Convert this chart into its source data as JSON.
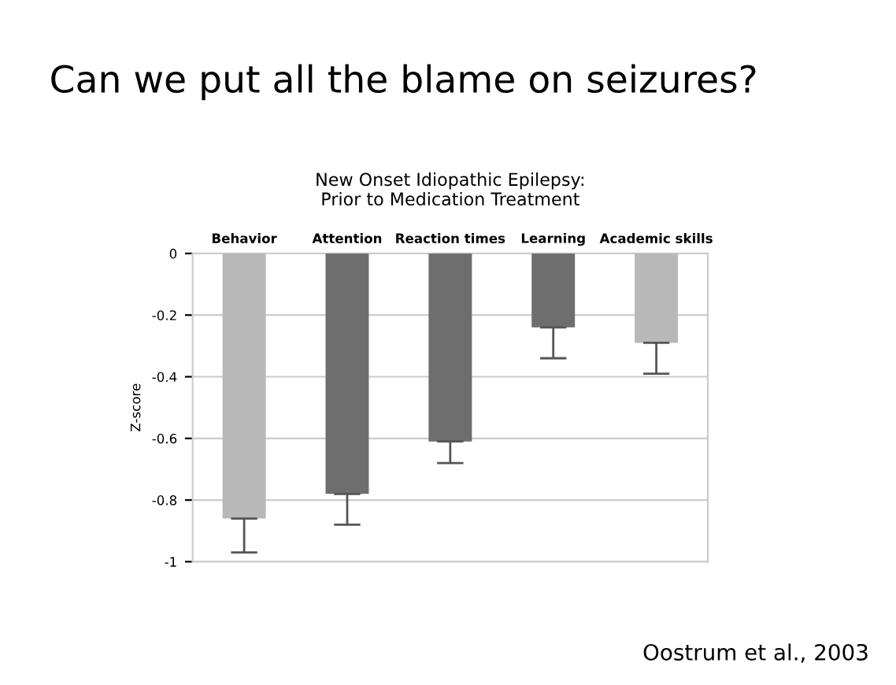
{
  "chart_data": {
    "type": "bar",
    "title": "Can we put all the blame on seizures?",
    "subtitle": "New Onset Idiopathic Epilepsy:\nPrior to Medication Treatment",
    "categories": [
      "Behavior",
      "Attention",
      "Reaction times",
      "Learning",
      "Academic skills"
    ],
    "values": [
      -0.86,
      -0.78,
      -0.61,
      -0.24,
      -0.29
    ],
    "errors": [
      [
        -0.97,
        -0.86
      ],
      [
        -0.88,
        -0.78
      ],
      [
        -0.68,
        -0.61
      ],
      [
        -0.34,
        -0.24
      ],
      [
        -0.39,
        -0.29
      ]
    ],
    "colors": [
      "#b8b8b8",
      "#6e6e6e",
      "#6e6e6e",
      "#6e6e6e",
      "#b8b8b8"
    ],
    "ylabel": "Z-score",
    "ylim": [
      -1,
      0
    ],
    "yticks": [
      0,
      -0.2,
      -0.4,
      -0.6,
      -0.8,
      -1
    ],
    "grid": "y",
    "annotations": [
      "Oostrum et al., 2003"
    ]
  }
}
